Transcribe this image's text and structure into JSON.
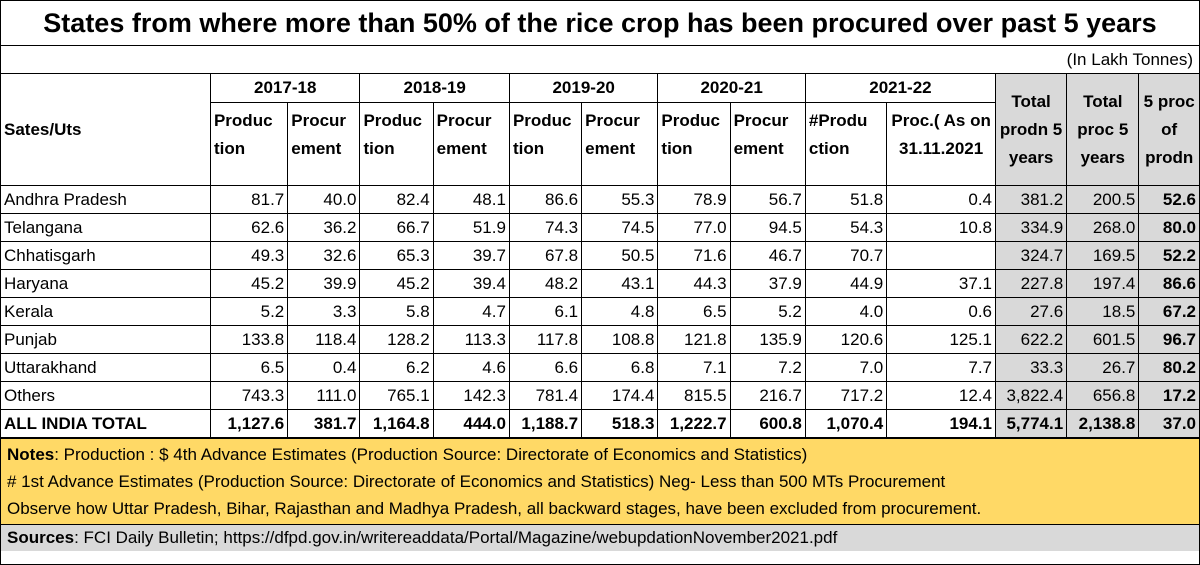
{
  "title": "States from where more than 50% of the rice crop has been procured over past 5 years",
  "unit": "(In Lakh Tonnes)",
  "table": {
    "state_header": "Sates/Uts",
    "years": [
      "2017-18",
      "2018-19",
      "2019-20",
      "2020-21",
      "2021-22"
    ],
    "sub_headers": [
      "Produc tion",
      "Procur ement",
      "Produc tion",
      "Procur ement",
      "Produc tion",
      "Procur ement",
      "Produc tion",
      "Procur ement",
      "#Produ ction",
      "Proc.( As on 31.11.2021"
    ],
    "total_headers": [
      "Total prodn 5 years",
      "Total proc 5 years",
      "5 proc of prodn"
    ],
    "rows": [
      {
        "state": "Andhra Pradesh",
        "values": [
          "81.7",
          "40.0",
          "82.4",
          "48.1",
          "86.6",
          "55.3",
          "78.9",
          "56.7",
          "51.8",
          "0.4",
          "381.2",
          "200.5",
          "52.6"
        ]
      },
      {
        "state": "Telangana",
        "values": [
          "62.6",
          "36.2",
          "66.7",
          "51.9",
          "74.3",
          "74.5",
          "77.0",
          "94.5",
          "54.3",
          "10.8",
          "334.9",
          "268.0",
          "80.0"
        ]
      },
      {
        "state": "Chhatisgarh",
        "values": [
          "49.3",
          "32.6",
          "65.3",
          "39.7",
          "67.8",
          "50.5",
          "71.6",
          "46.7",
          "70.7",
          "",
          "324.7",
          "169.5",
          "52.2"
        ]
      },
      {
        "state": "Haryana",
        "values": [
          "45.2",
          "39.9",
          "45.2",
          "39.4",
          "48.2",
          "43.1",
          "44.3",
          "37.9",
          "44.9",
          "37.1",
          "227.8",
          "197.4",
          "86.6"
        ]
      },
      {
        "state": "Kerala",
        "values": [
          "5.2",
          "3.3",
          "5.8",
          "4.7",
          "6.1",
          "4.8",
          "6.5",
          "5.2",
          "4.0",
          "0.6",
          "27.6",
          "18.5",
          "67.2"
        ]
      },
      {
        "state": "Punjab",
        "values": [
          "133.8",
          "118.4",
          "128.2",
          "113.3",
          "117.8",
          "108.8",
          "121.8",
          "135.9",
          "120.6",
          "125.1",
          "622.2",
          "601.5",
          "96.7"
        ]
      },
      {
        "state": "Uttarakhand",
        "values": [
          "6.5",
          "0.4",
          "6.2",
          "4.6",
          "6.6",
          "6.8",
          "7.1",
          "7.2",
          "7.0",
          "7.7",
          "33.3",
          "26.7",
          "80.2"
        ]
      },
      {
        "state": "Others",
        "values": [
          "743.3",
          "111.0",
          "765.1",
          "142.3",
          "781.4",
          "174.4",
          "815.5",
          "216.7",
          "717.2",
          "12.4",
          "3,822.4",
          "656.8",
          "17.2"
        ]
      }
    ],
    "total_row": {
      "state": "ALL INDIA TOTAL",
      "values": [
        "1,127.6",
        "381.7",
        "1,164.8",
        "444.0",
        "1,188.7",
        "518.3",
        "1,222.7",
        "600.8",
        "1,070.4",
        "194.1",
        "5,774.1",
        "2,138.8",
        "37.0"
      ]
    }
  },
  "notes": {
    "label": "Notes",
    "line1": ": Production : $ 4th Advance Estimates (Production Source: Directorate of Economics and Statistics)",
    "line2": "# 1st Advance Estimates (Production Source: Directorate of Economics and Statistics) Neg- Less than 500 MTs Procurement",
    "line3": "Observe how Uttar Pradesh, Bihar, Rajasthan and Madhya Pradesh, all backward stages, have been excluded from procurement."
  },
  "sources": {
    "label": "Sources",
    "text": ": FCI Daily Bulletin; https://dfpd.gov.in/writereaddata/Portal/Magazine/webupdationNovember2021.pdf"
  }
}
